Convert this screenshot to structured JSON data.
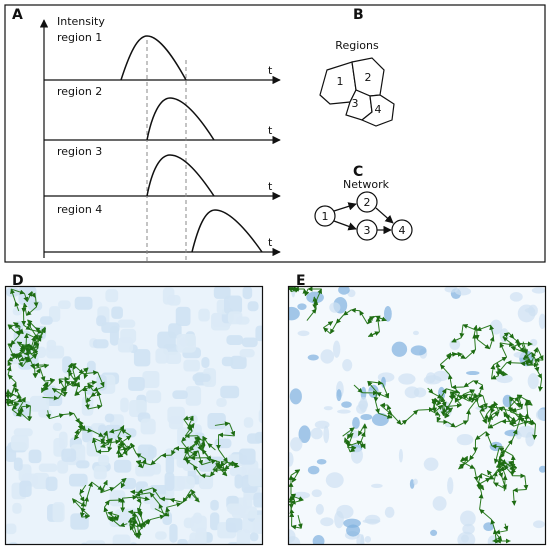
{
  "panels": {
    "A": {
      "label": "A",
      "y_axis_label": "Intensity",
      "rows": [
        {
          "label": "region 1",
          "x_axis_label": "t"
        },
        {
          "label": "region 2",
          "x_axis_label": "t"
        },
        {
          "label": "region 3",
          "x_axis_label": "t"
        },
        {
          "label": "region 4",
          "x_axis_label": "t"
        }
      ]
    },
    "B": {
      "label": "B",
      "title": "Regions",
      "regions": [
        "1",
        "2",
        "3",
        "4"
      ]
    },
    "C": {
      "label": "C",
      "title": "Network",
      "nodes": [
        "1",
        "2",
        "3",
        "4"
      ]
    },
    "D": {
      "label": "D"
    },
    "E": {
      "label": "E"
    }
  }
}
